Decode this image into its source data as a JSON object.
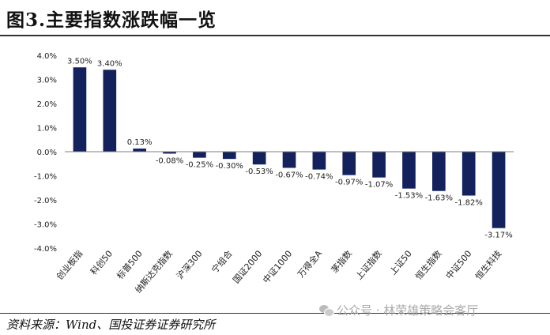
{
  "title": "图3.主要指数涨跌幅一览",
  "source": "资料来源：Wind、国投证券证券研究所",
  "watermark": {
    "text": "公众号 · 林荣雄策略会客厅",
    "icon": "wechat-icon"
  },
  "colors": {
    "bar": "#13225c",
    "axis": "#7f7f7f",
    "text": "#222222"
  },
  "chart_data": {
    "type": "bar",
    "categories": [
      "创业板指",
      "科创50",
      "标普500",
      "纳斯达克指数",
      "沪深300",
      "宁组合",
      "国证2000",
      "中证1000",
      "万得全A",
      "茅指数",
      "上证指数",
      "上证50",
      "恒生指数",
      "中证500",
      "恒生科技"
    ],
    "values": [
      3.5,
      3.4,
      0.13,
      -0.08,
      -0.25,
      -0.3,
      -0.53,
      -0.67,
      -0.74,
      -0.97,
      -1.07,
      -1.53,
      -1.63,
      -1.82,
      -3.17
    ],
    "data_labels": [
      "3.50%",
      "3.40%",
      "0.13%",
      "-0.08%",
      "-0.25%",
      "-0.30%",
      "-0.53%",
      "-0.67%",
      "-0.74%",
      "-0.97%",
      "-1.07%",
      "-1.53%",
      "-1.63%",
      "-1.82%",
      "-3.17%"
    ],
    "yticks": [
      "4.0%",
      "3.0%",
      "2.0%",
      "1.0%",
      "0.0%",
      "-1.0%",
      "-2.0%",
      "-3.0%",
      "-4.0%"
    ],
    "ylim": [
      -4,
      4
    ],
    "grid": false,
    "legend": "none"
  }
}
